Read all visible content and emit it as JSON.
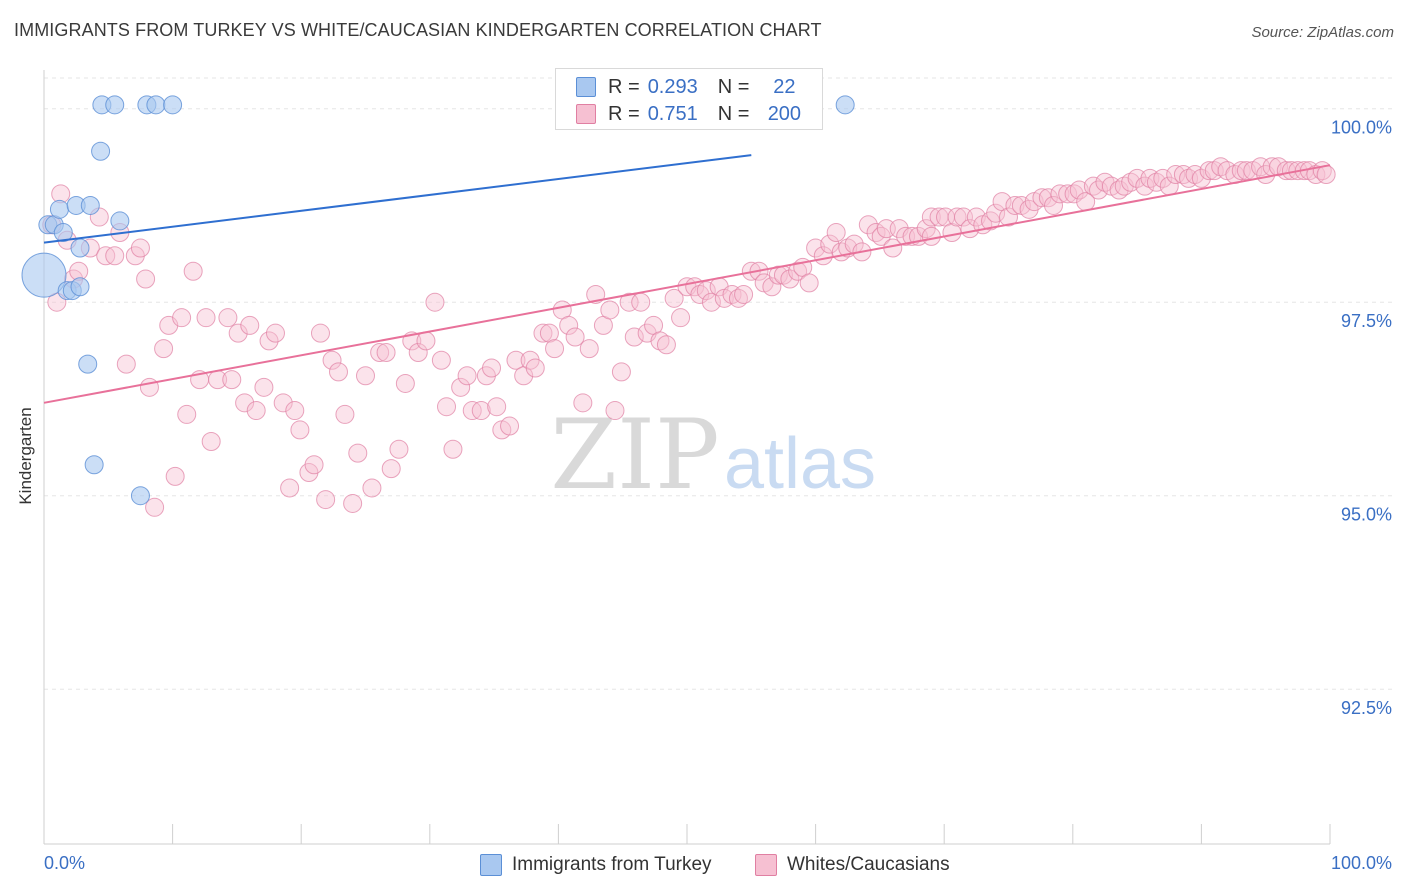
{
  "header": {
    "title": "IMMIGRANTS FROM TURKEY VS WHITE/CAUCASIAN KINDERGARTEN CORRELATION CHART",
    "source": "Source: ZipAtlas.com"
  },
  "watermark": {
    "zip": "ZIP",
    "atlas": "atlas"
  },
  "legend": {
    "rows": [
      {
        "r_label": "R =",
        "r_value": "0.293",
        "n_label": "N =",
        "n_value": "22",
        "color": "#a9c8f0",
        "stroke": "#5b8fd6"
      },
      {
        "r_label": "R =",
        "r_value": "0.751",
        "n_label": "N =",
        "n_value": "200",
        "color": "#f6c0d2",
        "stroke": "#e07fa2"
      }
    ]
  },
  "bottom_legend": [
    {
      "label": "Immigrants from Turkey",
      "color": "#a9c8f0",
      "stroke": "#5b8fd6"
    },
    {
      "label": "Whites/Caucasians",
      "color": "#f6c0d2",
      "stroke": "#e07fa2"
    }
  ],
  "chart_data": {
    "type": "scatter",
    "title": "IMMIGRANTS FROM TURKEY VS WHITE/CAUCASIAN KINDERGARTEN CORRELATION CHART",
    "ylabel": "Kindergarten",
    "xlabel": "",
    "xlim": [
      0,
      100
    ],
    "ylim": [
      90.5,
      100.5
    ],
    "x_tick_labels": [
      "0.0%",
      "100.0%"
    ],
    "y_ticks": [
      92.5,
      95.0,
      97.5,
      100.0
    ],
    "y_tick_labels": [
      "92.5%",
      "95.0%",
      "97.5%",
      "100.0%"
    ],
    "grid": true,
    "colors": {
      "blue": "#5b8fd6",
      "blue_fill": "#a9c8f0",
      "pink": "#e07fa2",
      "pink_fill": "#f6c0d2",
      "blue_line": "#2f6fd0",
      "pink_line": "#e8719a",
      "tick_text": "#3a6fc4"
    },
    "series": [
      {
        "name": "Immigrants from Turkey",
        "trend": {
          "x": [
            0,
            55
          ],
          "y": [
            98.27,
            99.4
          ]
        },
        "trend_dashed_end": 55,
        "points": [
          [
            0.0,
            97.85,
            22
          ],
          [
            0.3,
            98.5,
            9
          ],
          [
            0.8,
            98.5,
            9
          ],
          [
            1.2,
            98.7,
            9
          ],
          [
            1.5,
            98.4,
            9
          ],
          [
            1.8,
            97.65,
            9
          ],
          [
            2.2,
            97.65,
            9
          ],
          [
            2.5,
            98.75,
            9
          ],
          [
            2.8,
            98.2,
            9
          ],
          [
            2.8,
            97.7,
            9
          ],
          [
            3.4,
            96.7,
            9
          ],
          [
            3.6,
            98.75,
            9
          ],
          [
            3.9,
            95.4,
            9
          ],
          [
            4.4,
            99.45,
            9
          ],
          [
            4.5,
            100.05,
            9
          ],
          [
            5.5,
            100.05,
            9
          ],
          [
            5.9,
            98.55,
            9
          ],
          [
            7.5,
            95.0,
            9
          ],
          [
            8.0,
            100.05,
            9
          ],
          [
            8.7,
            100.05,
            9
          ],
          [
            10.0,
            100.05,
            9
          ],
          [
            62.3,
            100.05,
            9
          ]
        ]
      },
      {
        "name": "Whites/Caucasians",
        "trend": {
          "x": [
            0,
            100
          ],
          "y": [
            96.2,
            99.27
          ]
        },
        "points": [
          [
            0.6,
            98.5
          ],
          [
            1.0,
            97.5
          ],
          [
            1.3,
            98.9
          ],
          [
            1.8,
            98.3
          ],
          [
            2.3,
            97.8
          ],
          [
            2.7,
            97.9
          ],
          [
            3.6,
            98.2
          ],
          [
            4.3,
            98.6
          ],
          [
            4.8,
            98.1
          ],
          [
            5.5,
            98.1
          ],
          [
            5.9,
            98.4
          ],
          [
            6.4,
            96.7
          ],
          [
            7.1,
            98.1
          ],
          [
            7.5,
            98.2
          ],
          [
            7.9,
            97.8
          ],
          [
            8.2,
            96.4
          ],
          [
            8.6,
            94.85
          ],
          [
            9.3,
            96.9
          ],
          [
            9.7,
            97.2
          ],
          [
            10.2,
            95.25
          ],
          [
            10.7,
            97.3
          ],
          [
            11.1,
            96.05
          ],
          [
            11.6,
            97.9
          ],
          [
            12.1,
            96.5
          ],
          [
            12.6,
            97.3
          ],
          [
            13.0,
            95.7
          ],
          [
            13.5,
            96.5
          ],
          [
            14.3,
            97.3
          ],
          [
            14.6,
            96.5
          ],
          [
            15.1,
            97.1
          ],
          [
            15.6,
            96.2
          ],
          [
            16.0,
            97.2
          ],
          [
            16.5,
            96.1
          ],
          [
            17.1,
            96.4
          ],
          [
            17.5,
            97.0
          ],
          [
            18.0,
            97.1
          ],
          [
            18.6,
            96.2
          ],
          [
            19.1,
            95.1
          ],
          [
            19.5,
            96.1
          ],
          [
            19.9,
            95.85
          ],
          [
            20.6,
            95.3
          ],
          [
            21.0,
            95.4
          ],
          [
            21.5,
            97.1
          ],
          [
            21.9,
            94.95
          ],
          [
            22.4,
            96.75
          ],
          [
            22.9,
            96.6
          ],
          [
            23.4,
            96.05
          ],
          [
            24.0,
            94.9
          ],
          [
            24.4,
            95.55
          ],
          [
            25.0,
            96.55
          ],
          [
            25.5,
            95.1
          ],
          [
            26.1,
            96.85
          ],
          [
            26.6,
            96.85
          ],
          [
            27.0,
            95.35
          ],
          [
            27.6,
            95.6
          ],
          [
            28.1,
            96.45
          ],
          [
            28.6,
            97.0
          ],
          [
            29.1,
            96.85
          ],
          [
            29.7,
            97.0
          ],
          [
            30.4,
            97.5
          ],
          [
            30.9,
            96.75
          ],
          [
            31.3,
            96.15
          ],
          [
            31.8,
            95.6
          ],
          [
            32.4,
            96.4
          ],
          [
            32.9,
            96.55
          ],
          [
            33.3,
            96.1
          ],
          [
            34.0,
            96.1
          ],
          [
            34.4,
            96.55
          ],
          [
            34.8,
            96.65
          ],
          [
            35.2,
            96.15
          ],
          [
            35.6,
            95.85
          ],
          [
            36.2,
            95.9
          ],
          [
            36.7,
            96.75
          ],
          [
            37.3,
            96.55
          ],
          [
            37.8,
            96.75
          ],
          [
            38.2,
            96.65
          ],
          [
            38.8,
            97.1
          ],
          [
            39.3,
            97.1
          ],
          [
            39.7,
            96.9
          ],
          [
            40.3,
            97.4
          ],
          [
            40.8,
            97.2
          ],
          [
            41.3,
            97.05
          ],
          [
            41.9,
            96.2
          ],
          [
            42.4,
            96.9
          ],
          [
            42.9,
            97.6
          ],
          [
            43.5,
            97.2
          ],
          [
            44.0,
            97.4
          ],
          [
            44.4,
            96.1
          ],
          [
            44.9,
            96.6
          ],
          [
            45.5,
            97.5
          ],
          [
            45.9,
            97.05
          ],
          [
            46.4,
            97.5
          ],
          [
            46.9,
            97.1
          ],
          [
            47.4,
            97.2
          ],
          [
            47.9,
            97.0
          ],
          [
            48.4,
            96.95
          ],
          [
            49.0,
            97.55
          ],
          [
            49.5,
            97.3
          ],
          [
            50.0,
            97.7
          ],
          [
            50.6,
            97.7
          ],
          [
            51.0,
            97.6
          ],
          [
            51.5,
            97.65
          ],
          [
            51.9,
            97.5
          ],
          [
            52.5,
            97.7
          ],
          [
            52.9,
            97.55
          ],
          [
            53.5,
            97.6
          ],
          [
            54.0,
            97.55
          ],
          [
            54.4,
            97.6
          ],
          [
            55.0,
            97.9
          ],
          [
            55.6,
            97.9
          ],
          [
            56.0,
            97.75
          ],
          [
            56.6,
            97.7
          ],
          [
            57.1,
            97.85
          ],
          [
            57.5,
            97.85
          ],
          [
            58.0,
            97.8
          ],
          [
            58.6,
            97.9
          ],
          [
            59.0,
            97.95
          ],
          [
            59.5,
            97.75
          ],
          [
            60.0,
            98.2
          ],
          [
            60.6,
            98.1
          ],
          [
            61.1,
            98.25
          ],
          [
            61.6,
            98.4
          ],
          [
            62.0,
            98.15
          ],
          [
            62.5,
            98.2
          ],
          [
            63.0,
            98.25
          ],
          [
            63.6,
            98.15
          ],
          [
            64.1,
            98.5
          ],
          [
            64.7,
            98.4
          ],
          [
            65.1,
            98.35
          ],
          [
            65.5,
            98.45
          ],
          [
            66.0,
            98.2
          ],
          [
            66.5,
            98.45
          ],
          [
            67.0,
            98.35
          ],
          [
            67.5,
            98.35
          ],
          [
            68.0,
            98.35
          ],
          [
            68.6,
            98.45
          ],
          [
            69.0,
            98.6
          ],
          [
            69.6,
            98.6
          ],
          [
            70.1,
            98.6
          ],
          [
            70.6,
            98.4
          ],
          [
            71.0,
            98.6
          ],
          [
            71.5,
            98.6
          ],
          [
            72.0,
            98.45
          ],
          [
            72.5,
            98.6
          ],
          [
            73.0,
            98.5
          ],
          [
            73.6,
            98.55
          ],
          [
            74.0,
            98.65
          ],
          [
            74.5,
            98.8
          ],
          [
            75.0,
            98.6
          ],
          [
            75.5,
            98.75
          ],
          [
            76.0,
            98.75
          ],
          [
            76.6,
            98.7
          ],
          [
            77.0,
            98.8
          ],
          [
            77.6,
            98.85
          ],
          [
            78.1,
            98.85
          ],
          [
            78.5,
            98.75
          ],
          [
            79.0,
            98.9
          ],
          [
            79.6,
            98.9
          ],
          [
            80.1,
            98.9
          ],
          [
            80.5,
            98.95
          ],
          [
            81.0,
            98.8
          ],
          [
            81.6,
            99.0
          ],
          [
            82.0,
            98.95
          ],
          [
            82.5,
            99.05
          ],
          [
            83.0,
            99.0
          ],
          [
            83.6,
            98.95
          ],
          [
            84.0,
            99.0
          ],
          [
            84.5,
            99.05
          ],
          [
            85.0,
            99.1
          ],
          [
            85.6,
            99.0
          ],
          [
            86.0,
            99.1
          ],
          [
            86.5,
            99.05
          ],
          [
            87.0,
            99.1
          ],
          [
            87.5,
            99.0
          ],
          [
            88.0,
            99.15
          ],
          [
            88.6,
            99.15
          ],
          [
            89.0,
            99.1
          ],
          [
            89.5,
            99.15
          ],
          [
            90.0,
            99.1
          ],
          [
            90.6,
            99.2
          ],
          [
            91.0,
            99.2
          ],
          [
            91.5,
            99.25
          ],
          [
            92.0,
            99.2
          ],
          [
            92.6,
            99.15
          ],
          [
            93.1,
            99.2
          ],
          [
            93.5,
            99.2
          ],
          [
            94.0,
            99.2
          ],
          [
            94.6,
            99.25
          ],
          [
            95.0,
            99.15
          ],
          [
            95.5,
            99.25
          ],
          [
            96.0,
            99.25
          ],
          [
            96.6,
            99.2
          ],
          [
            97.0,
            99.2
          ],
          [
            97.5,
            99.2
          ],
          [
            98.0,
            99.2
          ],
          [
            98.4,
            99.2
          ],
          [
            98.9,
            99.15
          ],
          [
            99.4,
            99.2
          ],
          [
            99.7,
            99.15
          ],
          [
            69.0,
            98.35
          ]
        ]
      }
    ]
  }
}
